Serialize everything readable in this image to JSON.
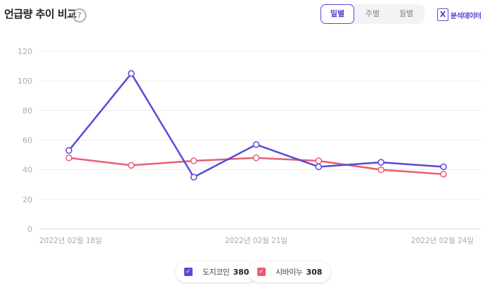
{
  "header": {
    "title": "언급량 추이 비교",
    "help_symbol": "?",
    "period_tabs": [
      {
        "label": "일별",
        "active": true
      },
      {
        "label": "주별",
        "active": false
      },
      {
        "label": "월별",
        "active": false
      }
    ],
    "export_label": "분석데이터",
    "export_icon": "excel-x-icon",
    "export_icon_glyph": "X"
  },
  "legend": [
    {
      "name": "도지코인",
      "total": "380",
      "color": "#5a48d8",
      "checked": true
    },
    {
      "name": "시바이누",
      "total": "308",
      "color": "#e85d75",
      "checked": true
    }
  ],
  "chart_data": {
    "type": "line",
    "x": [
      "2022-02-18",
      "2022-02-19",
      "2022-02-20",
      "2022-02-21",
      "2022-02-22",
      "2022-02-23",
      "2022-02-24"
    ],
    "x_tick_labels": [
      {
        "index": 0,
        "label": "2022년 02월 18일"
      },
      {
        "index": 3,
        "label": "2022년 02월 21일"
      },
      {
        "index": 6,
        "label": "2022년 02월 24일"
      }
    ],
    "yticks": [
      0,
      20,
      40,
      60,
      80,
      100,
      120
    ],
    "ylim": [
      0,
      120
    ],
    "grid": true,
    "series": [
      {
        "name": "도지코인",
        "color": "#5a48d8",
        "values": [
          53,
          105,
          35,
          57,
          42,
          45,
          42
        ]
      },
      {
        "name": "시바이누",
        "color": "#e85d75",
        "values": [
          48,
          43,
          46,
          48,
          46,
          40,
          37
        ]
      }
    ],
    "title": "",
    "xlabel": "",
    "ylabel": ""
  }
}
